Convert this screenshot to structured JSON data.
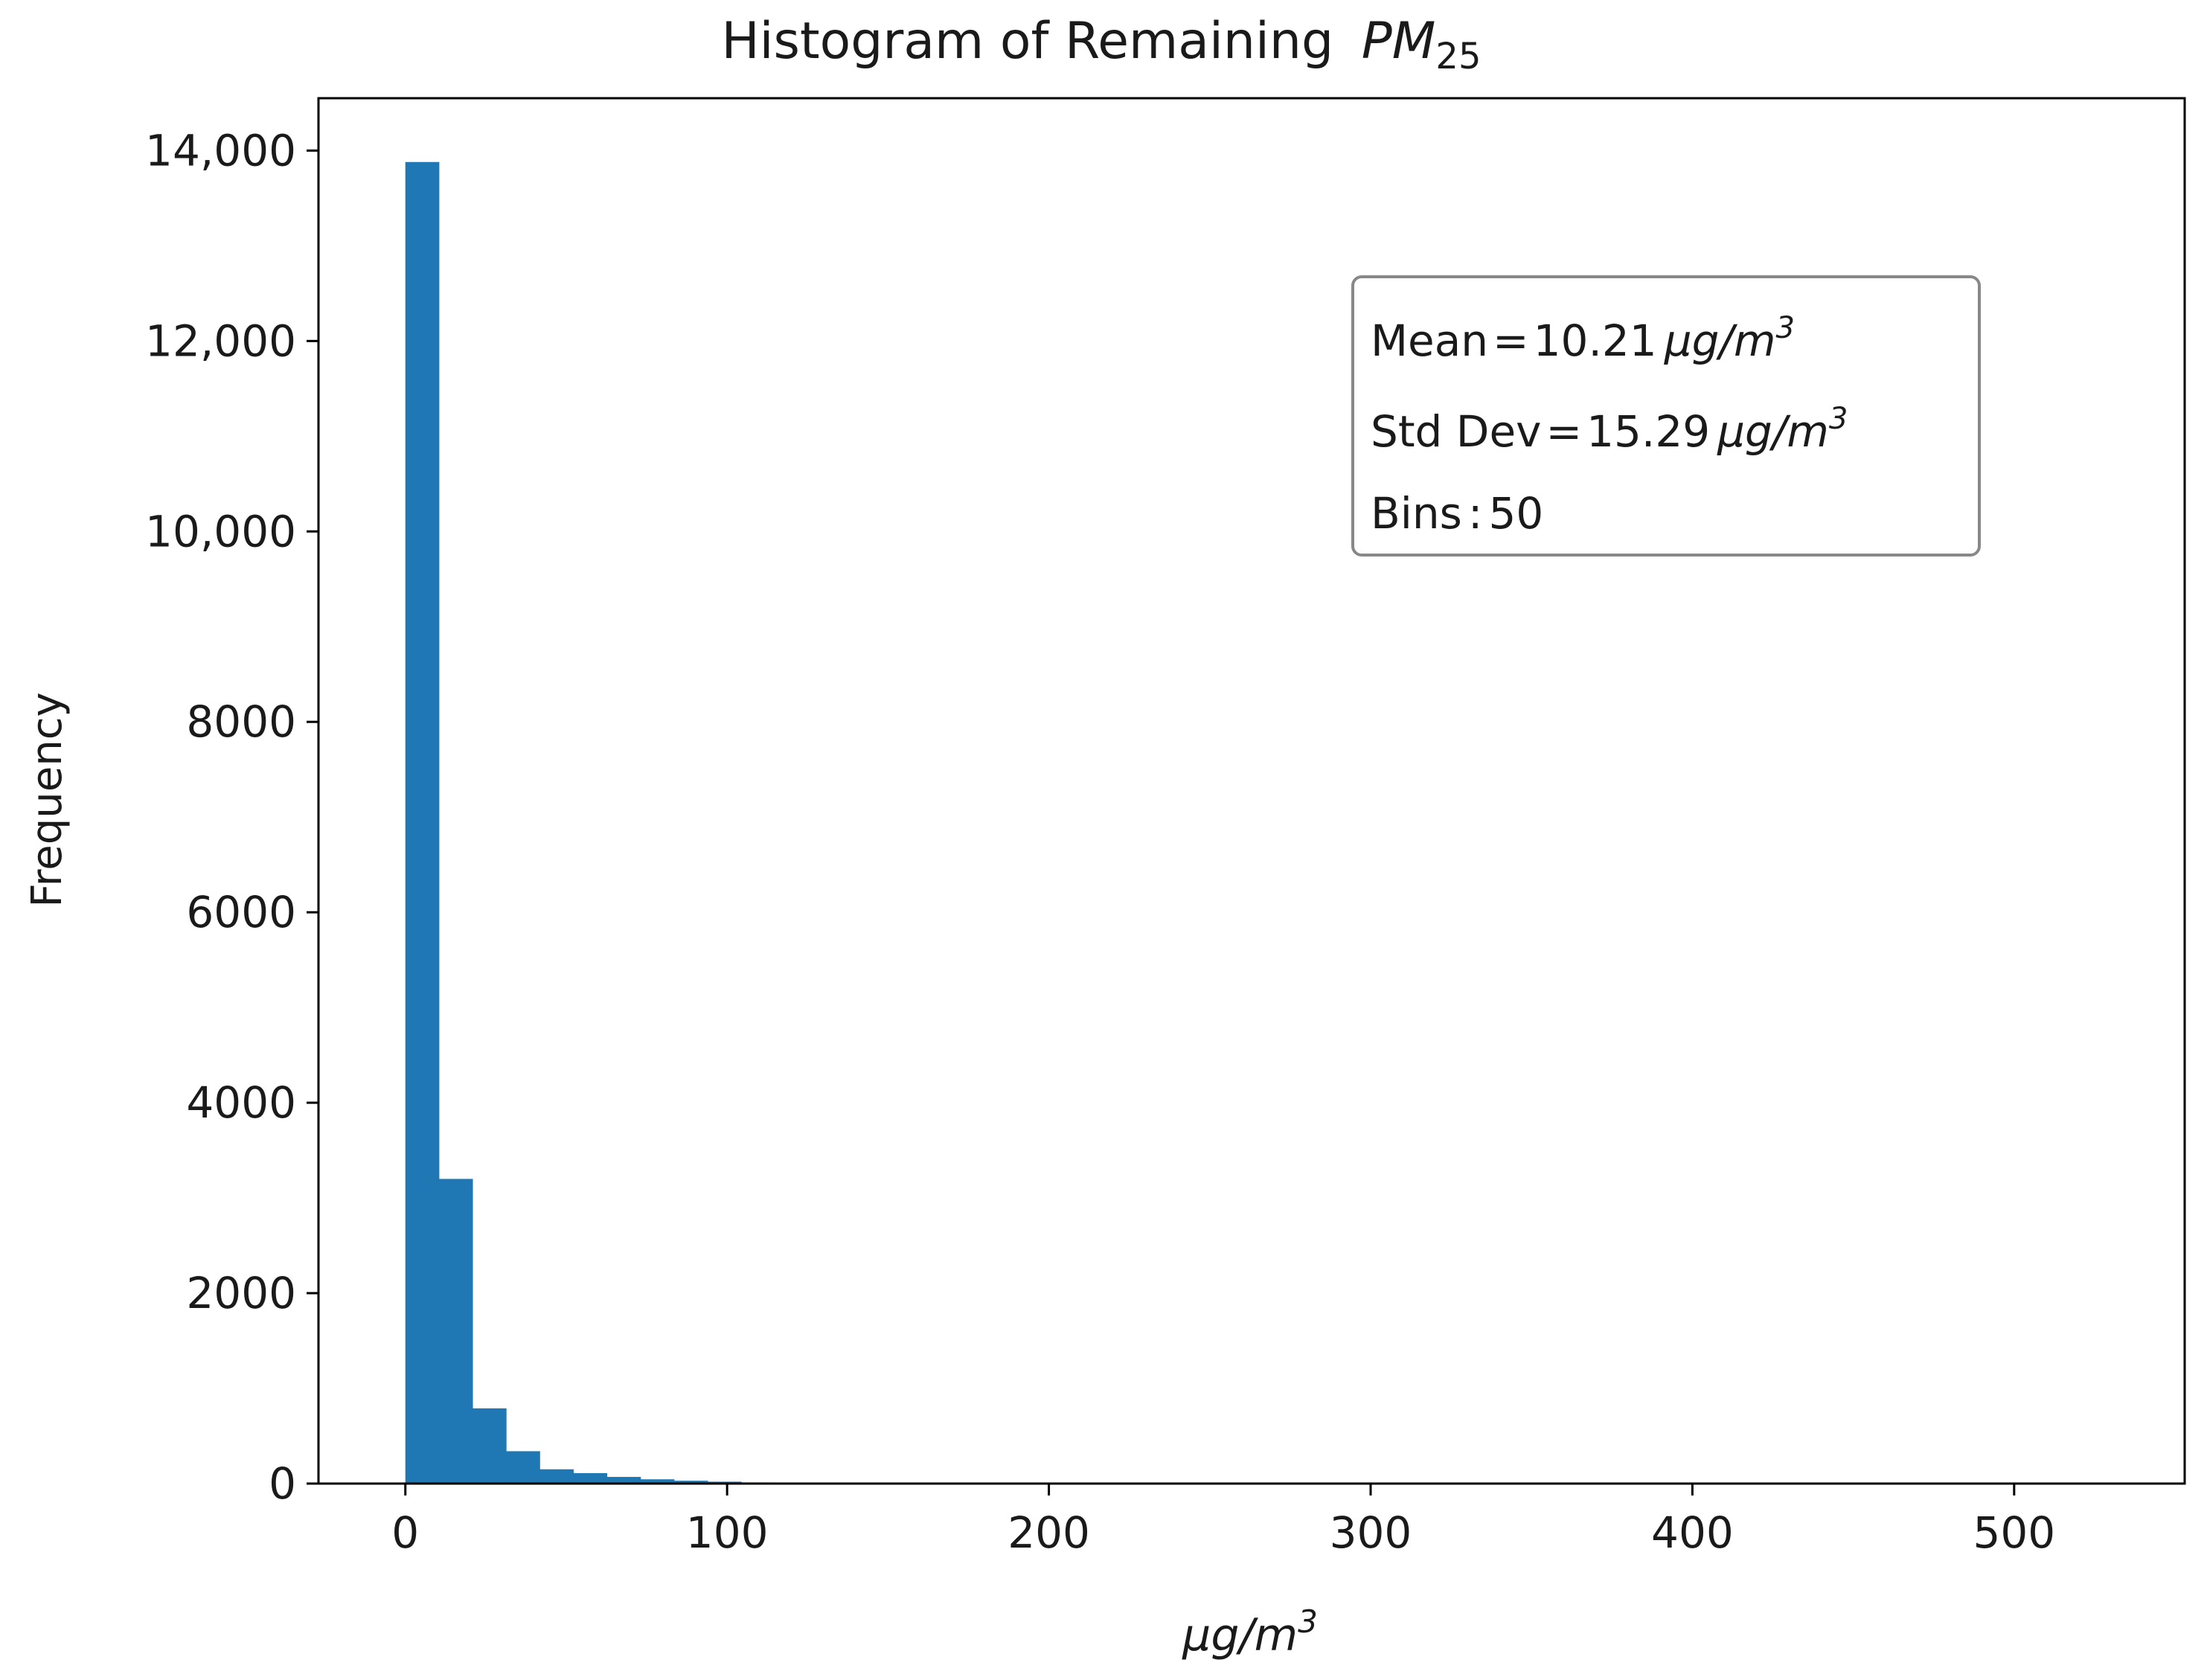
{
  "chart_data": {
    "type": "bar",
    "title": "Histogram of Remaining",
    "title_math": {
      "base": "PM",
      "subscript": "25"
    },
    "xlabel": {
      "base": "μg/m",
      "superscript": "3"
    },
    "ylabel": "Frequency",
    "xlim": [
      -27,
      553
    ],
    "ylim": [
      0,
      14550
    ],
    "x_ticks": [
      0,
      100,
      200,
      300,
      400,
      500
    ],
    "x_tick_labels": [
      "0",
      "100",
      "200",
      "300",
      "400",
      "500"
    ],
    "y_ticks": [
      0,
      2000,
      4000,
      6000,
      8000,
      10000,
      12000,
      14000
    ],
    "y_tick_labels": [
      "0",
      "2000",
      "4000",
      "6000",
      "8000",
      "10,000",
      "12,000",
      "14,000"
    ],
    "bin_width": 10.44,
    "bin_start": 0,
    "bins": 50,
    "values": [
      13880,
      3200,
      790,
      340,
      150,
      110,
      70,
      45,
      30,
      20,
      12,
      8,
      6,
      5,
      4,
      3,
      3,
      2,
      2,
      2,
      1,
      1,
      1,
      1,
      1,
      1,
      1,
      1,
      1,
      0,
      0,
      0,
      0,
      0,
      0,
      0,
      0,
      0,
      0,
      0,
      0,
      0,
      0,
      0,
      0,
      0,
      0,
      0,
      0,
      1
    ],
    "bar_color": "#1f77b4",
    "grid": false,
    "annotation": {
      "mean_label": "Mean",
      "mean_value": "10.21",
      "std_label": "Std Dev",
      "std_value": "15.29",
      "unit": {
        "base": "μg/m",
        "superscript": "3"
      },
      "bins_label": "Bins",
      "bins_value": "50",
      "placement": "top-right"
    }
  }
}
